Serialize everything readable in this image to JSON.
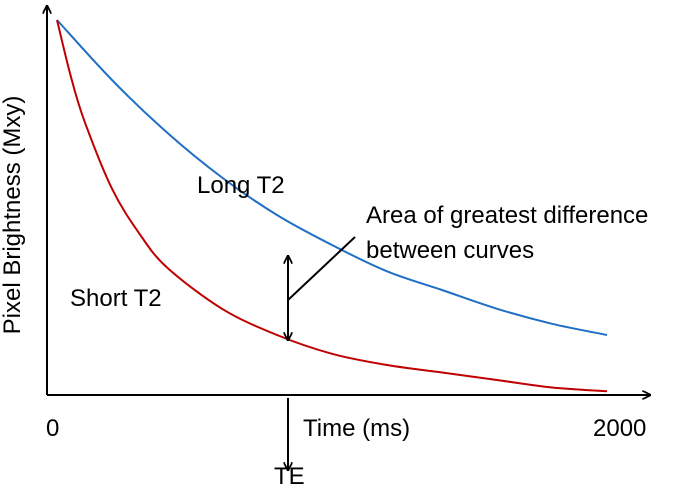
{
  "chart_data": {
    "type": "line",
    "title": "",
    "xlabel": "Time (ms)",
    "ylabel": "Pixel Brightness (Mxy)",
    "x_ticks": [
      "0",
      "2000"
    ],
    "xlim": [
      0,
      2000
    ],
    "ylim": [
      0,
      1
    ],
    "grid": false,
    "legend": "none",
    "series": [
      {
        "name": "Long T2",
        "color": "#1f6fc5",
        "x": [
          0,
          200,
          400,
          600,
          800,
          1000,
          1200,
          1400,
          1600,
          1800,
          2000
        ],
        "y": [
          1.0,
          0.84,
          0.7,
          0.58,
          0.48,
          0.4,
          0.33,
          0.28,
          0.23,
          0.19,
          0.16
        ]
      },
      {
        "name": "Short T2",
        "color": "#c00000",
        "x": [
          0,
          50,
          100,
          200,
          300,
          400,
          600,
          800,
          1000,
          1200,
          1400,
          1600,
          1800,
          2000
        ],
        "y": [
          1.0,
          0.85,
          0.73,
          0.55,
          0.43,
          0.34,
          0.23,
          0.16,
          0.11,
          0.08,
          0.06,
          0.04,
          0.02,
          0.01
        ]
      }
    ],
    "annotations": {
      "long_label": "Long T2",
      "short_label": "Short T2",
      "area_line1": "Area of greatest difference",
      "area_line2": "between curves",
      "te_label": "TE",
      "te_x": 900
    }
  }
}
